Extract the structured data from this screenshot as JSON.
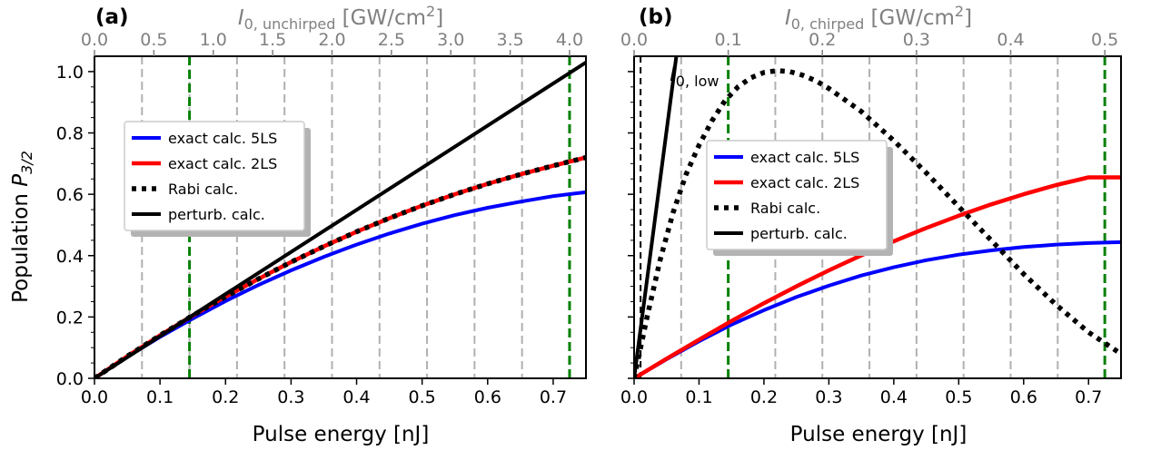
{
  "colors": {
    "blue": "#0000ff",
    "red": "#ff0000",
    "black": "#000000",
    "green": "#008000",
    "grey_vline": "#b0b0b0",
    "top_axis_text": "#808080"
  },
  "shared": {
    "ylabel": "Population",
    "ylabel_math": "P",
    "ylabel_sub": "3/2",
    "xlabel": "Pulse energy [nJ]"
  },
  "chart_data": [
    {
      "type": "line",
      "panel_label": "(a)",
      "xlim": [
        0,
        0.75
      ],
      "ylim": [
        0,
        1.05
      ],
      "xticks": [
        0.0,
        0.1,
        0.2,
        0.3,
        0.4,
        0.5,
        0.6,
        0.7
      ],
      "xtick_labels": [
        "0.0",
        "0.1",
        "0.2",
        "0.3",
        "0.4",
        "0.5",
        "0.6",
        "0.7"
      ],
      "yticks": [
        0.0,
        0.2,
        0.4,
        0.6,
        0.8,
        1.0
      ],
      "ytick_labels": [
        "0.0",
        "0.2",
        "0.4",
        "0.6",
        "0.8",
        "1.0"
      ],
      "top_axis": {
        "label_prefix": "I",
        "label_sub": "0, unchirped",
        "label_unit_pre": " [GW/cm",
        "label_unit_sup": "2",
        "label_unit_post": "]",
        "max_value": 4.0,
        "ticks": [
          0.0,
          0.5,
          1.0,
          1.5,
          2.0,
          2.5,
          3.0,
          3.5,
          4.0
        ],
        "tick_labels": [
          "0.0",
          "0.5",
          "1.0",
          "1.5",
          "2.0",
          "2.5",
          "3.0",
          "3.5",
          "4.0"
        ]
      },
      "grey_vlines_x": [
        0.0725,
        0.145,
        0.2175,
        0.29,
        0.3625,
        0.435,
        0.5075,
        0.58,
        0.6525
      ],
      "green_vlines_x": [
        0.145,
        0.725
      ],
      "series": [
        {
          "name": "exact calc. 5LS",
          "style": "solid-blue",
          "x": [
            0,
            0.05,
            0.1,
            0.15,
            0.2,
            0.25,
            0.3,
            0.35,
            0.4,
            0.45,
            0.5,
            0.55,
            0.6,
            0.65,
            0.7,
            0.75
          ],
          "y": [
            0,
            0.07,
            0.135,
            0.195,
            0.252,
            0.304,
            0.352,
            0.396,
            0.436,
            0.472,
            0.504,
            0.532,
            0.556,
            0.576,
            0.594,
            0.607
          ]
        },
        {
          "name": "exact calc. 2LS",
          "style": "solid-red",
          "x": [
            0,
            0.05,
            0.1,
            0.15,
            0.2,
            0.25,
            0.3,
            0.35,
            0.4,
            0.45,
            0.5,
            0.55,
            0.6,
            0.65,
            0.7,
            0.75
          ],
          "y": [
            0,
            0.072,
            0.14,
            0.205,
            0.266,
            0.324,
            0.379,
            0.43,
            0.478,
            0.522,
            0.563,
            0.6,
            0.634,
            0.665,
            0.693,
            0.72
          ]
        },
        {
          "name": "Rabi calc.",
          "style": "dotted-black",
          "x": [
            0,
            0.05,
            0.1,
            0.15,
            0.2,
            0.25,
            0.3,
            0.35,
            0.4,
            0.45,
            0.5,
            0.55,
            0.6,
            0.65,
            0.7,
            0.75
          ],
          "y": [
            0,
            0.072,
            0.14,
            0.205,
            0.266,
            0.324,
            0.379,
            0.43,
            0.478,
            0.522,
            0.563,
            0.6,
            0.634,
            0.665,
            0.693,
            0.72
          ]
        },
        {
          "name": "perturb. calc.",
          "style": "solid-black",
          "x": [
            0,
            0.75
          ],
          "y": [
            0,
            1.03
          ]
        }
      ],
      "legend": [
        "exact calc. 5LS",
        "exact calc. 2LS",
        "Rabi calc.",
        "perturb. calc."
      ]
    },
    {
      "type": "line",
      "panel_label": "(b)",
      "xlim": [
        0,
        0.75
      ],
      "ylim": [
        0,
        1.05
      ],
      "xticks": [
        0.0,
        0.1,
        0.2,
        0.3,
        0.4,
        0.5,
        0.6,
        0.7
      ],
      "xtick_labels": [
        "0.0",
        "0.1",
        "0.2",
        "0.3",
        "0.4",
        "0.5",
        "0.6",
        "0.7"
      ],
      "top_axis": {
        "label_prefix": "I",
        "label_sub": "0, chirped",
        "label_unit_pre": " [GW/cm",
        "label_unit_sup": "2",
        "label_unit_post": "]",
        "max_value": 0.5,
        "ticks": [
          0.0,
          0.1,
          0.2,
          0.3,
          0.4,
          0.5
        ],
        "tick_labels": [
          "0.0",
          "0.1",
          "0.2",
          "0.3",
          "0.4",
          "0.5"
        ]
      },
      "annotation": {
        "prefix": "I",
        "sub": "0, low",
        "x": 0.055,
        "y": 0.97
      },
      "grey_vlines_x": [
        0.0725,
        0.2175,
        0.29,
        0.3625,
        0.435,
        0.5075,
        0.58,
        0.6525
      ],
      "black_dashed_vline_x": 0.01,
      "green_vlines_x": [
        0.145,
        0.725
      ],
      "series": [
        {
          "name": "exact calc. 5LS",
          "style": "solid-blue",
          "x": [
            0,
            0.05,
            0.1,
            0.15,
            0.2,
            0.25,
            0.3,
            0.35,
            0.4,
            0.45,
            0.5,
            0.55,
            0.6,
            0.65,
            0.7,
            0.75
          ],
          "y": [
            0,
            0.062,
            0.121,
            0.175,
            0.222,
            0.265,
            0.302,
            0.335,
            0.362,
            0.385,
            0.403,
            0.417,
            0.428,
            0.436,
            0.441,
            0.444
          ]
        },
        {
          "name": "exact calc. 2LS",
          "style": "solid-red",
          "x": [
            0,
            0.05,
            0.1,
            0.15,
            0.2,
            0.25,
            0.3,
            0.35,
            0.4,
            0.45,
            0.5,
            0.55,
            0.6,
            0.65,
            0.7,
            0.75
          ],
          "y": [
            0,
            0.064,
            0.126,
            0.187,
            0.245,
            0.3,
            0.352,
            0.401,
            0.447,
            0.49,
            0.53,
            0.567,
            0.6,
            0.63,
            0.655,
            0.655
          ]
        },
        {
          "name": "Rabi calc.",
          "style": "dotted-black",
          "x": [
            0,
            0.02,
            0.04,
            0.06,
            0.08,
            0.1,
            0.12,
            0.14,
            0.16,
            0.18,
            0.2,
            0.22,
            0.24,
            0.26,
            0.28,
            0.3,
            0.35,
            0.4,
            0.45,
            0.5,
            0.55,
            0.6,
            0.65,
            0.7,
            0.75
          ],
          "y": [
            0,
            0.2,
            0.385,
            0.54,
            0.665,
            0.76,
            0.84,
            0.905,
            0.95,
            0.98,
            0.997,
            1.003,
            1.0,
            0.988,
            0.97,
            0.945,
            0.87,
            0.775,
            0.67,
            0.56,
            0.45,
            0.34,
            0.24,
            0.15,
            0.08
          ]
        },
        {
          "name": "perturb. calc.",
          "style": "solid-black",
          "x": [
            0,
            0.065
          ],
          "y": [
            0,
            1.05
          ]
        }
      ],
      "legend": [
        "exact calc. 5LS",
        "exact calc. 2LS",
        "Rabi calc.",
        "perturb. calc."
      ]
    }
  ]
}
